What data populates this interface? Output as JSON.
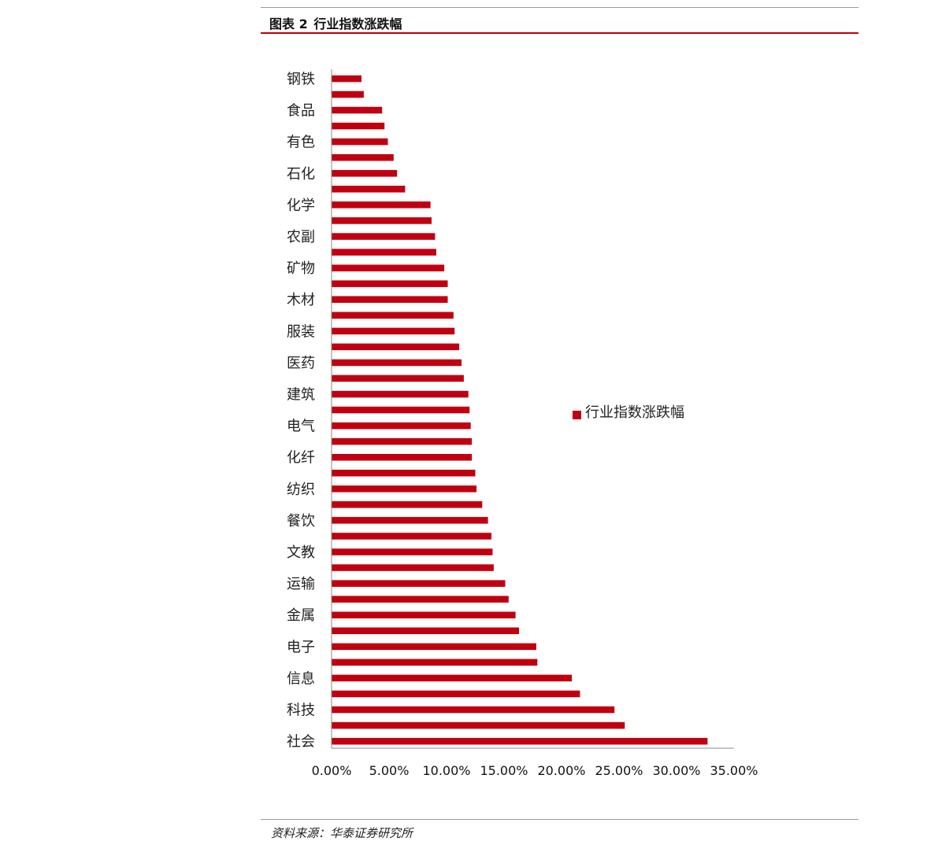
{
  "figure": {
    "label": "图表",
    "number": "2",
    "caption": "行业指数涨跌幅"
  },
  "source": "资料来源：华泰证券研究所",
  "colors": {
    "bar": "#c00010",
    "rule_accent": "#c00000",
    "axis": "#8a8a8a"
  },
  "chart_data": {
    "type": "bar",
    "orientation": "horizontal",
    "title": "",
    "xlabel": "",
    "ylabel": "",
    "xlim": [
      0,
      35
    ],
    "x_ticks": [
      "0.00%",
      "5.00%",
      "10.00%",
      "15.00%",
      "20.00%",
      "25.00%",
      "30.00%",
      "35.00%"
    ],
    "legend": {
      "position": "right",
      "entries": [
        "行业指数涨跌幅"
      ]
    },
    "grid": false,
    "category_labels": [
      "钢铁",
      "",
      "食品",
      "",
      "有色",
      "",
      "石化",
      "",
      "化学",
      "",
      "农副",
      "",
      "矿物",
      "",
      "木材",
      "",
      "服装",
      "",
      "医药",
      "",
      "建筑",
      "",
      "电气",
      "",
      "化纤",
      "",
      "纺织",
      "",
      "餐饮",
      "",
      "文教",
      "",
      "运输",
      "",
      "金属",
      "",
      "电子",
      "",
      "信息",
      "",
      "科技",
      "",
      "社会"
    ],
    "series": [
      {
        "name": "行业指数涨跌幅",
        "values": [
          2.6,
          2.8,
          4.4,
          4.6,
          4.9,
          5.4,
          5.7,
          6.4,
          8.6,
          8.7,
          9.0,
          9.1,
          9.8,
          10.1,
          10.1,
          10.6,
          10.7,
          11.1,
          11.3,
          11.5,
          11.9,
          12.0,
          12.1,
          12.2,
          12.2,
          12.5,
          12.6,
          13.1,
          13.6,
          13.9,
          14.0,
          14.1,
          15.1,
          15.4,
          16.0,
          16.3,
          17.8,
          17.9,
          20.9,
          21.6,
          24.6,
          25.5,
          32.7
        ]
      }
    ]
  }
}
